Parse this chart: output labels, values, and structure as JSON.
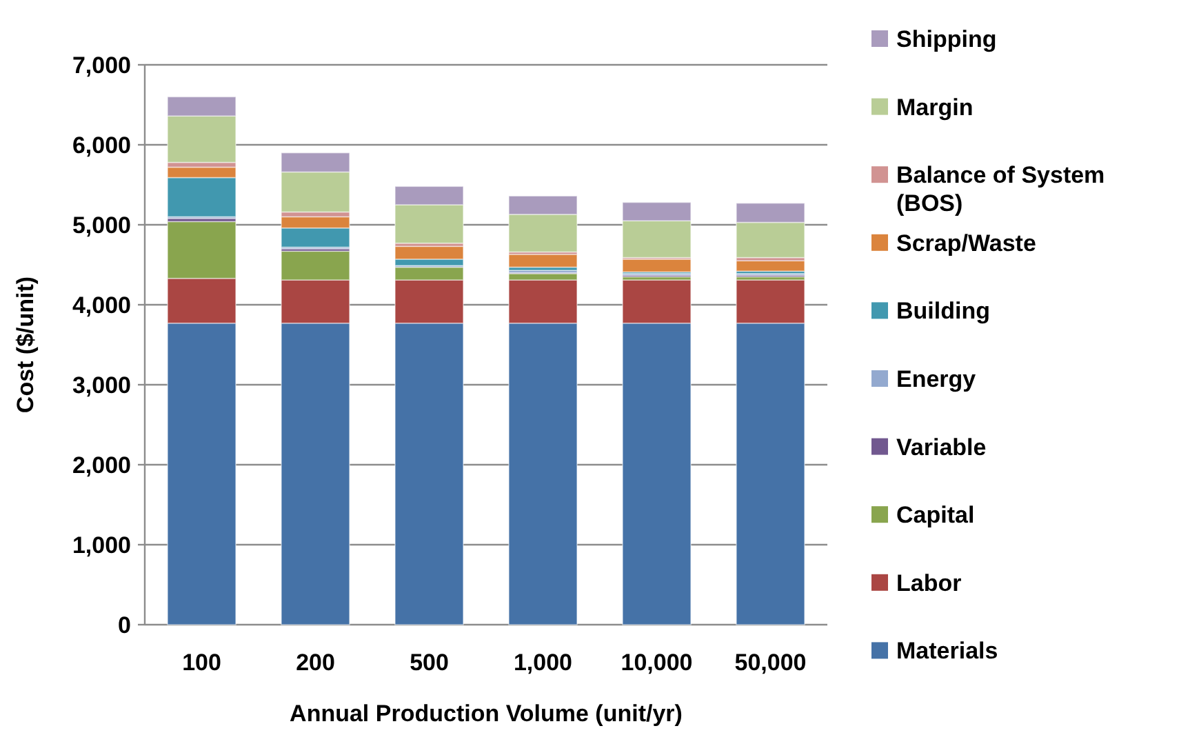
{
  "chart_data": {
    "type": "bar",
    "stacked": true,
    "xlabel": "Annual Production Volume (unit/yr)",
    "ylabel": "Cost ($/unit)",
    "categories": [
      "100",
      "200",
      "500",
      "1,000",
      "10,000",
      "50,000"
    ],
    "ylim": [
      0,
      7000
    ],
    "yticks": [
      {
        "value": 0,
        "label": "0"
      },
      {
        "value": 1000,
        "label": "1,000"
      },
      {
        "value": 2000,
        "label": "2,000"
      },
      {
        "value": 3000,
        "label": "3,000"
      },
      {
        "value": 4000,
        "label": "4,000"
      },
      {
        "value": 5000,
        "label": "5,000"
      },
      {
        "value": 6000,
        "label": "6,000"
      },
      {
        "value": 7000,
        "label": "7,000"
      }
    ],
    "grid": "y",
    "legend": "right",
    "series": [
      {
        "name": "Materials",
        "color": "#4572a7",
        "values": [
          3770,
          3770,
          3770,
          3770,
          3770,
          3770
        ]
      },
      {
        "name": "Labor",
        "color": "#aa4643",
        "values": [
          560,
          540,
          540,
          540,
          540,
          540
        ]
      },
      {
        "name": "Capital",
        "color": "#89a54e",
        "values": [
          710,
          360,
          160,
          80,
          40,
          40
        ]
      },
      {
        "name": "Variable",
        "color": "#71588f",
        "values": [
          40,
          30,
          null,
          10,
          20,
          20
        ]
      },
      {
        "name": "Energy",
        "color": "#93a9cf",
        "values": [
          20,
          20,
          20,
          30,
          20,
          20
        ]
      },
      {
        "name": "Building",
        "color": "#4198af",
        "values": [
          490,
          240,
          80,
          40,
          20,
          30
        ]
      },
      {
        "name": "Scrap/Waste",
        "color": "#db843d",
        "values": [
          130,
          140,
          160,
          160,
          160,
          130
        ]
      },
      {
        "name": "Balance of System (BOS)",
        "color": "#d19392",
        "values": [
          60,
          60,
          40,
          30,
          20,
          40
        ]
      },
      {
        "name": "Margin",
        "color": "#b9cd96",
        "values": [
          580,
          500,
          480,
          470,
          460,
          440
        ]
      },
      {
        "name": "Shipping",
        "color": "#a99bbd",
        "values": [
          240,
          240,
          230,
          230,
          230,
          240
        ]
      }
    ]
  }
}
